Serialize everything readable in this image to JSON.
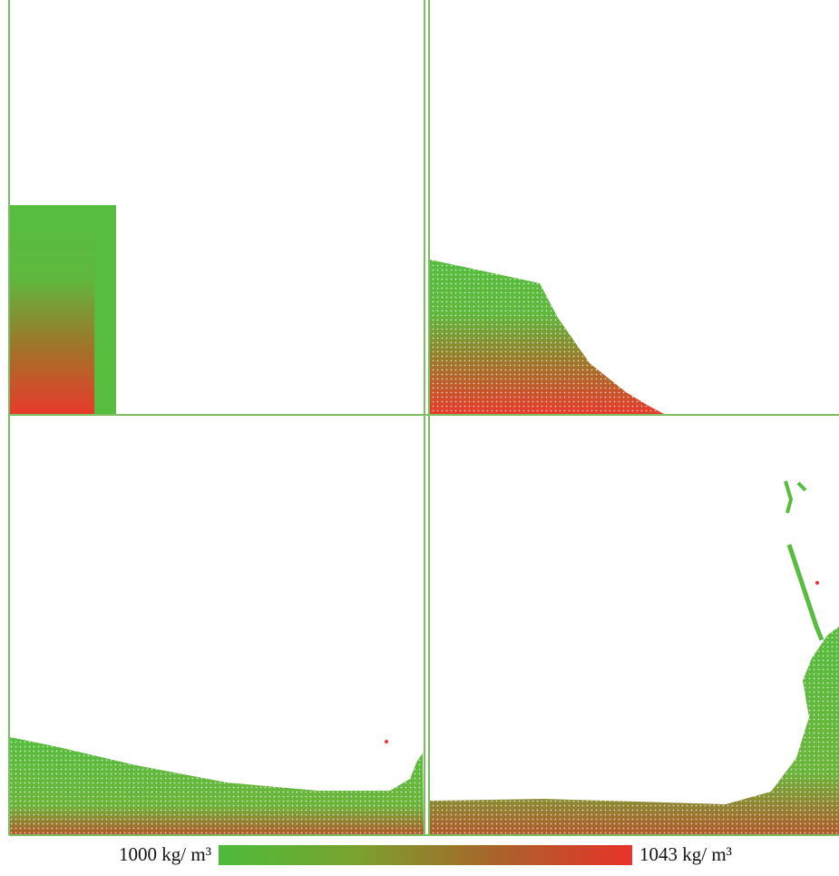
{
  "colorbar": {
    "min_label": "1000 kg/ m³",
    "max_label": "1043 kg/ m³",
    "colors": [
      "#4cbb3a",
      "#7aa22e",
      "#a8642a",
      "#e8322a"
    ]
  }
}
